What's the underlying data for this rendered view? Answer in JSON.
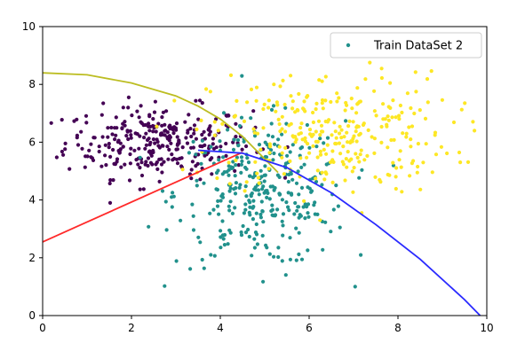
{
  "chart_data": {
    "type": "scatter",
    "title": "",
    "xlabel": "",
    "ylabel": "",
    "xlim": [
      0,
      10
    ],
    "ylim": [
      0,
      10
    ],
    "x_ticks": [
      "0",
      "2",
      "4",
      "6",
      "8",
      "10"
    ],
    "y_ticks": [
      "0",
      "2",
      "4",
      "6",
      "8",
      "10"
    ],
    "legend": {
      "label": "Train DataSet 2",
      "location": "upper right",
      "marker_color": "#21918c"
    },
    "grid": false,
    "clusters": [
      {
        "color": "#440154",
        "center": [
          2.6,
          6.0
        ],
        "std": [
          1.05,
          0.62
        ],
        "count": 300
      },
      {
        "color": "#21918c",
        "center": [
          4.9,
          4.2
        ],
        "std": [
          0.95,
          1.25
        ],
        "count": 330
      },
      {
        "color": "#fde725",
        "center": [
          6.5,
          6.3
        ],
        "std": [
          1.35,
          1.05
        ],
        "count": 300
      }
    ],
    "lines": [
      {
        "name": "boundary-olive",
        "color": "#bcbd22",
        "x": [
          0,
          1,
          2,
          3,
          3.5,
          4,
          4.5,
          5.3
        ],
        "y": [
          8.4,
          8.33,
          8.05,
          7.6,
          7.25,
          6.8,
          6.2,
          4.95
        ]
      },
      {
        "name": "boundary-red",
        "color": "#ff2a2a",
        "x": [
          0,
          4.5
        ],
        "y": [
          2.55,
          5.65
        ]
      },
      {
        "name": "boundary-blue",
        "color": "#2a2aff",
        "x": [
          3.5,
          4.5,
          5.5,
          6.5,
          7.5,
          8.5,
          9.5,
          9.85
        ],
        "y": [
          5.72,
          5.62,
          5.12,
          4.25,
          3.15,
          1.95,
          0.55,
          0.0
        ]
      }
    ]
  }
}
